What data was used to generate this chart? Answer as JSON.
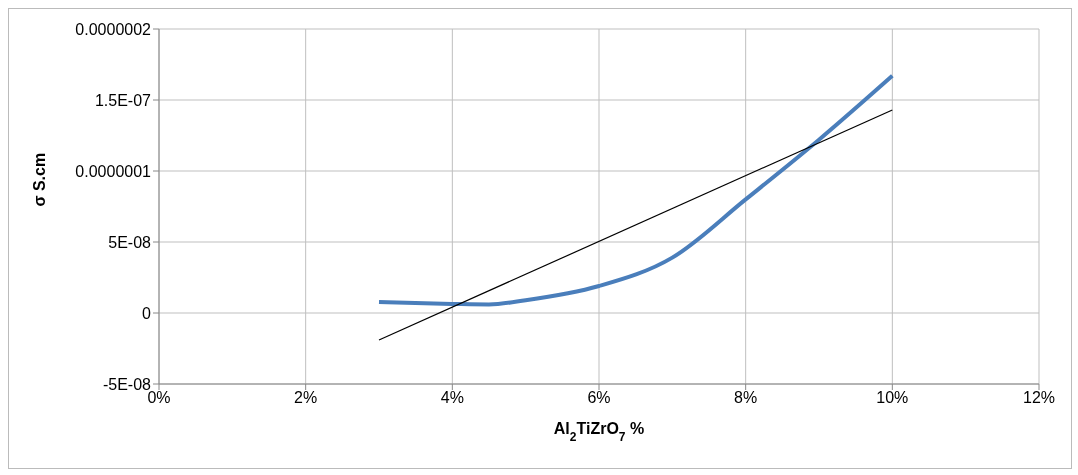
{
  "chart_data": {
    "type": "line",
    "xlabel": "Al$_{2}$TiZrO$_{7}$ %",
    "ylabel": "σ    S.cm",
    "xlim": [
      0,
      12
    ],
    "xticks": [
      {
        "value": 0,
        "label": "0%"
      },
      {
        "value": 2,
        "label": "2%"
      },
      {
        "value": 4,
        "label": "4%"
      },
      {
        "value": 6,
        "label": "6%"
      },
      {
        "value": 8,
        "label": "8%"
      },
      {
        "value": 10,
        "label": "10%"
      },
      {
        "value": 12,
        "label": "12%"
      }
    ],
    "ylim": [
      -5e-08,
      2e-07
    ],
    "yticks": [
      {
        "value": -5e-08,
        "label": "-5E-08"
      },
      {
        "value": 0,
        "label": "0"
      },
      {
        "value": 5e-08,
        "label": "5E-08"
      },
      {
        "value": 1e-07,
        "label": "0.0000001"
      },
      {
        "value": 1.5e-07,
        "label": "1.5E-07"
      },
      {
        "value": 2e-07,
        "label": "0.0000002"
      }
    ],
    "grid": true,
    "marker": "none",
    "line_style": "solid",
    "series": [
      {
        "color": "#4a7ebb",
        "x": [
          3,
          4,
          4.5,
          5,
          6,
          7,
          8,
          9,
          10
        ],
        "values": [
          7.7e-09,
          6.4e-09,
          6e-09,
          9e-09,
          1.9e-08,
          3.9e-08,
          8e-08,
          1.22e-07,
          1.67e-07
        ]
      },
      {
        "type": "line",
        "color": "#000000",
        "x": [
          3,
          10
        ],
        "values": [
          -1.9e-08,
          1.43e-07
        ]
      }
    ]
  }
}
